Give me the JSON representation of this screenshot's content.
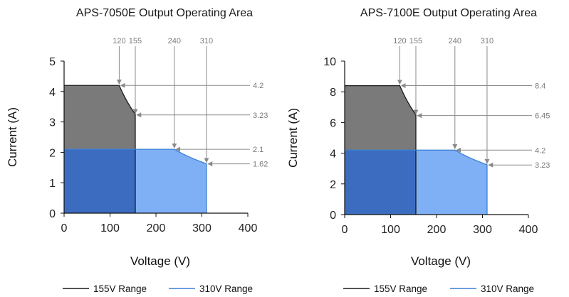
{
  "chart_data": [
    {
      "type": "area",
      "title": "APS-7050E Output Operating Area",
      "xlabel": "Voltage (V)",
      "ylabel": "Current (A)",
      "xlim": [
        0,
        400
      ],
      "ylim": [
        0,
        5
      ],
      "x_ticks": [
        0,
        100,
        200,
        300,
        400
      ],
      "y_ticks": [
        0,
        1,
        2,
        3,
        4,
        5
      ],
      "grid": false,
      "legend_position": "bottom",
      "series": [
        {
          "name": "155V Range",
          "color": "#1a1a1a",
          "fill": "#7a7a7a",
          "constant_current": 4.2,
          "power_knee_voltage": 120,
          "max_voltage": 155,
          "current_at_max_voltage": 3.23
        },
        {
          "name": "310V Range",
          "color": "#3a7fd5",
          "fill": "#7fb0f5",
          "constant_current": 2.1,
          "power_knee_voltage": 240,
          "max_voltage": 310,
          "current_at_max_voltage": 1.62
        }
      ],
      "overlap_fill": "#3b6cc0",
      "top_annotations": [
        "120",
        "155",
        "240",
        "310"
      ],
      "right_annotations": [
        "4.2",
        "3.23",
        "2.1",
        "1.62"
      ]
    },
    {
      "type": "area",
      "title": "APS-7100E Output Operating Area",
      "xlabel": "Voltage (V)",
      "ylabel": "Current (A)",
      "xlim": [
        0,
        400
      ],
      "ylim": [
        0,
        10
      ],
      "x_ticks": [
        0,
        100,
        200,
        300,
        400
      ],
      "y_ticks": [
        0,
        2,
        4,
        6,
        8,
        10
      ],
      "grid": false,
      "legend_position": "bottom",
      "series": [
        {
          "name": "155V Range",
          "color": "#1a1a1a",
          "fill": "#7a7a7a",
          "constant_current": 8.4,
          "power_knee_voltage": 120,
          "max_voltage": 155,
          "current_at_max_voltage": 6.45
        },
        {
          "name": "310V Range",
          "color": "#3a7fd5",
          "fill": "#7fb0f5",
          "constant_current": 4.2,
          "power_knee_voltage": 240,
          "max_voltage": 310,
          "current_at_max_voltage": 3.23
        }
      ],
      "overlap_fill": "#3b6cc0",
      "top_annotations": [
        "120",
        "155",
        "240",
        "310"
      ],
      "right_annotations": [
        "8.4",
        "6.45",
        "4.2",
        "3.23"
      ]
    }
  ]
}
